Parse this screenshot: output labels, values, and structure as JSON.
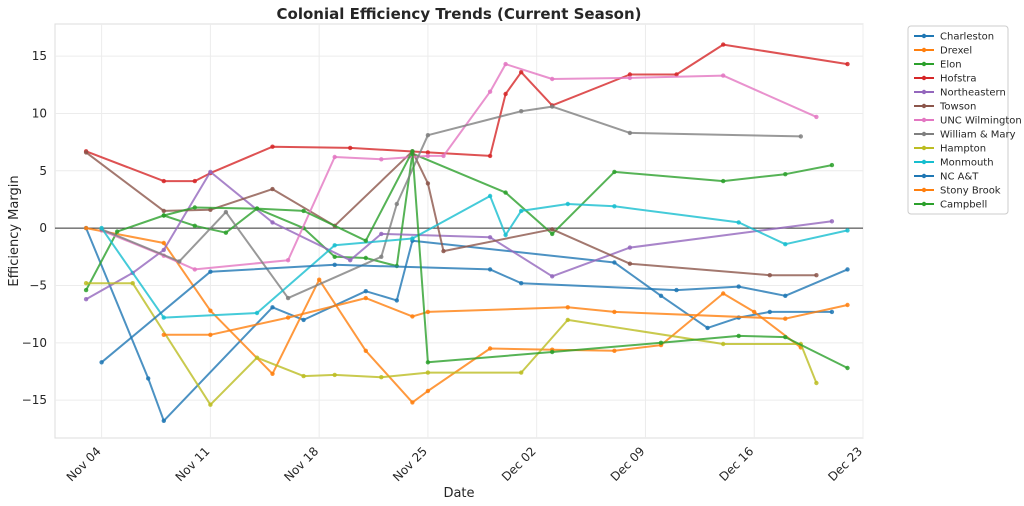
{
  "chart_data": {
    "type": "line",
    "title": "Colonial Efficiency Trends (Current Season)",
    "xlabel": "Date",
    "ylabel": "Efficiency Margin",
    "x_range": [
      "2024-11-01",
      "2024-12-23"
    ],
    "ylim": [
      -18.3,
      17.8
    ],
    "x_ticks": [
      "2024-11-04",
      "2024-11-11",
      "2024-11-18",
      "2024-11-25",
      "2024-12-02",
      "2024-12-09",
      "2024-12-16",
      "2024-12-23"
    ],
    "x_tick_labels": [
      "Nov 04",
      "Nov 11",
      "Nov 18",
      "Nov 25",
      "Dec 02",
      "Dec 09",
      "Dec 16",
      "Dec 23"
    ],
    "y_ticks": [
      -15,
      -10,
      -5,
      0,
      5,
      10,
      15
    ],
    "y_tick_labels": [
      "−15",
      "−10",
      "−5",
      "0",
      "5",
      "10",
      "15"
    ],
    "grid": true,
    "zero_line": true,
    "legend_position": "outside-right",
    "series": [
      {
        "name": "Charleston",
        "color": "#1f77b4",
        "points": [
          [
            "2024-11-03",
            0.0
          ],
          [
            "2024-11-07",
            -13.1
          ],
          [
            "2024-11-08",
            -16.8
          ],
          [
            "2024-11-15",
            -6.9
          ],
          [
            "2024-11-17",
            -8.0
          ],
          [
            "2024-11-21",
            -5.5
          ],
          [
            "2024-11-23",
            -6.3
          ],
          [
            "2024-11-24",
            -1.1
          ],
          [
            "2024-12-07",
            -3.0
          ],
          [
            "2024-12-10",
            -5.9
          ],
          [
            "2024-12-13",
            -8.7
          ],
          [
            "2024-12-15",
            -7.8
          ],
          [
            "2024-12-17",
            -7.3
          ],
          [
            "2024-12-21",
            -7.3
          ]
        ]
      },
      {
        "name": "Drexel",
        "color": "#ff7f0e",
        "points": [
          [
            "2024-11-03",
            0.0
          ],
          [
            "2024-11-08",
            -1.3
          ],
          [
            "2024-11-11",
            -7.2
          ],
          [
            "2024-11-15",
            -12.7
          ],
          [
            "2024-11-18",
            -4.5
          ],
          [
            "2024-11-21",
            -10.7
          ],
          [
            "2024-11-24",
            -15.2
          ],
          [
            "2024-11-25",
            -14.2
          ],
          [
            "2024-11-29",
            -10.5
          ],
          [
            "2024-12-03",
            -10.6
          ],
          [
            "2024-12-07",
            -10.7
          ],
          [
            "2024-12-10",
            -10.2
          ],
          [
            "2024-12-14",
            -5.7
          ],
          [
            "2024-12-16",
            -7.3
          ],
          [
            "2024-12-19",
            -10.4
          ]
        ]
      },
      {
        "name": "Elon",
        "color": "#2ca02c",
        "points": [
          [
            "2024-11-03",
            -5.4
          ],
          [
            "2024-11-05",
            -0.3
          ],
          [
            "2024-11-08",
            1.1
          ],
          [
            "2024-11-10",
            0.2
          ],
          [
            "2024-11-12",
            -0.4
          ],
          [
            "2024-11-14",
            1.7
          ],
          [
            "2024-11-17",
            0.0
          ],
          [
            "2024-11-19",
            -2.5
          ],
          [
            "2024-11-21",
            -2.6
          ],
          [
            "2024-11-23",
            -3.3
          ],
          [
            "2024-11-24",
            6.5
          ],
          [
            "2024-11-30",
            3.1
          ],
          [
            "2024-12-03",
            -0.5
          ],
          [
            "2024-12-07",
            4.9
          ],
          [
            "2024-12-14",
            4.1
          ],
          [
            "2024-12-18",
            4.7
          ],
          [
            "2024-12-21",
            5.5
          ]
        ]
      },
      {
        "name": "Hofstra",
        "color": "#d62728",
        "points": [
          [
            "2024-11-03",
            6.7
          ],
          [
            "2024-11-08",
            4.1
          ],
          [
            "2024-11-10",
            4.1
          ],
          [
            "2024-11-11",
            4.8
          ],
          [
            "2024-11-15",
            7.1
          ],
          [
            "2024-11-20",
            7.0
          ],
          [
            "2024-11-25",
            6.6
          ],
          [
            "2024-11-29",
            6.3
          ],
          [
            "2024-11-30",
            11.7
          ],
          [
            "2024-12-01",
            13.6
          ],
          [
            "2024-12-03",
            10.7
          ],
          [
            "2024-12-08",
            13.4
          ],
          [
            "2024-12-11",
            13.4
          ],
          [
            "2024-12-14",
            16.0
          ],
          [
            "2024-12-22",
            14.3
          ]
        ]
      },
      {
        "name": "Northeastern",
        "color": "#9467bd",
        "points": [
          [
            "2024-11-03",
            -6.2
          ],
          [
            "2024-11-06",
            -3.9
          ],
          [
            "2024-11-08",
            -1.9
          ],
          [
            "2024-11-11",
            4.9
          ],
          [
            "2024-11-15",
            0.5
          ],
          [
            "2024-11-20",
            -2.8
          ],
          [
            "2024-11-22",
            -0.5
          ],
          [
            "2024-11-29",
            -0.8
          ],
          [
            "2024-12-03",
            -4.2
          ],
          [
            "2024-12-08",
            -1.7
          ],
          [
            "2024-12-21",
            0.6
          ]
        ]
      },
      {
        "name": "Towson",
        "color": "#8c564b",
        "points": [
          [
            "2024-11-03",
            6.6
          ],
          [
            "2024-11-08",
            1.5
          ],
          [
            "2024-11-11",
            1.6
          ],
          [
            "2024-11-15",
            3.4
          ],
          [
            "2024-11-19",
            0.2
          ],
          [
            "2024-11-24",
            6.7
          ],
          [
            "2024-11-25",
            3.9
          ],
          [
            "2024-11-26",
            -2.0
          ],
          [
            "2024-12-03",
            -0.1
          ],
          [
            "2024-12-08",
            -3.1
          ],
          [
            "2024-12-17",
            -4.1
          ],
          [
            "2024-12-20",
            -4.1
          ]
        ]
      },
      {
        "name": "UNC Wilmington",
        "color": "#e377c2",
        "points": [
          [
            "2024-11-04",
            -0.2
          ],
          [
            "2024-11-08",
            -2.4
          ],
          [
            "2024-11-10",
            -3.6
          ],
          [
            "2024-11-16",
            -2.8
          ],
          [
            "2024-11-19",
            6.2
          ],
          [
            "2024-11-22",
            6.0
          ],
          [
            "2024-11-25",
            6.3
          ],
          [
            "2024-11-26",
            6.3
          ],
          [
            "2024-11-29",
            11.9
          ],
          [
            "2024-11-30",
            14.3
          ],
          [
            "2024-12-03",
            13.0
          ],
          [
            "2024-12-08",
            13.1
          ],
          [
            "2024-12-14",
            13.3
          ],
          [
            "2024-12-20",
            9.7
          ]
        ]
      },
      {
        "name": "William & Mary",
        "color": "#7f7f7f",
        "points": [
          [
            "2024-11-04",
            -0.1
          ],
          [
            "2024-11-09",
            -2.9
          ],
          [
            "2024-11-12",
            1.4
          ],
          [
            "2024-11-16",
            -6.1
          ],
          [
            "2024-11-22",
            -2.5
          ],
          [
            "2024-11-23",
            2.1
          ],
          [
            "2024-11-25",
            8.1
          ],
          [
            "2024-12-01",
            10.2
          ],
          [
            "2024-12-03",
            10.6
          ],
          [
            "2024-12-08",
            8.3
          ],
          [
            "2024-12-19",
            8.0
          ]
        ]
      },
      {
        "name": "Hampton",
        "color": "#bcbd22",
        "points": [
          [
            "2024-11-03",
            -4.8
          ],
          [
            "2024-11-06",
            -4.8
          ],
          [
            "2024-11-11",
            -15.4
          ],
          [
            "2024-11-14",
            -11.3
          ],
          [
            "2024-11-17",
            -12.9
          ],
          [
            "2024-11-19",
            -12.8
          ],
          [
            "2024-11-22",
            -13.0
          ],
          [
            "2024-11-25",
            -12.6
          ],
          [
            "2024-12-01",
            -12.6
          ],
          [
            "2024-12-04",
            -8.0
          ],
          [
            "2024-12-14",
            -10.1
          ],
          [
            "2024-12-19",
            -10.1
          ],
          [
            "2024-12-20",
            -13.5
          ]
        ]
      },
      {
        "name": "Monmouth",
        "color": "#17becf",
        "points": [
          [
            "2024-11-04",
            0.0
          ],
          [
            "2024-11-08",
            -7.8
          ],
          [
            "2024-11-14",
            -7.4
          ],
          [
            "2024-11-19",
            -1.5
          ],
          [
            "2024-11-24",
            -0.9
          ],
          [
            "2024-11-29",
            2.8
          ],
          [
            "2024-11-30",
            -0.6
          ],
          [
            "2024-12-01",
            1.5
          ],
          [
            "2024-12-04",
            2.1
          ],
          [
            "2024-12-07",
            1.9
          ],
          [
            "2024-12-15",
            0.5
          ],
          [
            "2024-12-18",
            -1.4
          ],
          [
            "2024-12-22",
            -0.2
          ]
        ]
      },
      {
        "name": "NC A&T",
        "color": "#1f77b4",
        "points": [
          [
            "2024-11-04",
            -11.7
          ],
          [
            "2024-11-11",
            -3.8
          ],
          [
            "2024-11-19",
            -3.2
          ],
          [
            "2024-11-29",
            -3.6
          ],
          [
            "2024-12-01",
            -4.8
          ],
          [
            "2024-12-11",
            -5.4
          ],
          [
            "2024-12-15",
            -5.1
          ],
          [
            "2024-12-18",
            -5.9
          ],
          [
            "2024-12-22",
            -3.6
          ]
        ]
      },
      {
        "name": "Stony Brook",
        "color": "#ff7f0e",
        "points": [
          [
            "2024-11-08",
            -9.3
          ],
          [
            "2024-11-11",
            -9.3
          ],
          [
            "2024-11-16",
            -7.8
          ],
          [
            "2024-11-21",
            -6.1
          ],
          [
            "2024-11-24",
            -7.7
          ],
          [
            "2024-11-25",
            -7.3
          ],
          [
            "2024-12-04",
            -6.9
          ],
          [
            "2024-12-07",
            -7.3
          ],
          [
            "2024-12-18",
            -7.9
          ],
          [
            "2024-12-22",
            -6.7
          ]
        ]
      },
      {
        "name": "Campbell",
        "color": "#2ca02c",
        "points": [
          [
            "2024-11-08",
            1.1
          ],
          [
            "2024-11-10",
            1.8
          ],
          [
            "2024-11-14",
            1.7
          ],
          [
            "2024-11-17",
            1.5
          ],
          [
            "2024-11-21",
            -1.1
          ],
          [
            "2024-11-24",
            6.7
          ],
          [
            "2024-11-25",
            -11.7
          ],
          [
            "2024-12-03",
            -10.8
          ],
          [
            "2024-12-10",
            -10.0
          ],
          [
            "2024-12-15",
            -9.4
          ],
          [
            "2024-12-18",
            -9.5
          ],
          [
            "2024-12-22",
            -12.2
          ]
        ]
      }
    ]
  }
}
